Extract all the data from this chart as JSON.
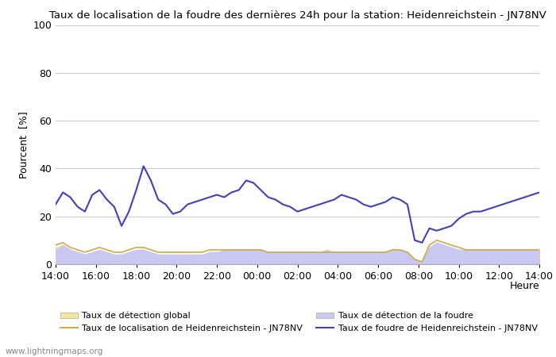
{
  "title": "Taux de localisation de la foudre des dernières 24h pour la station: Heidenreichstein - JN78NV",
  "ylabel": "Pourcent  [%]",
  "xlabel": "Heure",
  "xlim_labels": [
    "14:00",
    "16:00",
    "18:00",
    "20:00",
    "22:00",
    "00:00",
    "02:00",
    "04:00",
    "06:00",
    "08:00",
    "10:00",
    "12:00",
    "14:00"
  ],
  "ylim": [
    0,
    100
  ],
  "yticks": [
    0,
    20,
    40,
    60,
    80,
    100
  ],
  "watermark": "www.lightningmaps.org",
  "legend": [
    {
      "label": "Taux de détection global",
      "type": "fill",
      "color": "#f5e89a"
    },
    {
      "label": "Taux de localisation de Heidenreichstein - JN78NV",
      "type": "line",
      "color": "#d4a843"
    },
    {
      "label": "Taux de détection de la foudre",
      "type": "fill",
      "color": "#c8c8f0"
    },
    {
      "label": "Taux de foudre de Heidenreichstein - JN78NV",
      "type": "line",
      "color": "#4040c0"
    }
  ],
  "blue_line": [
    25,
    30,
    28,
    24,
    22,
    29,
    31,
    27,
    24,
    16,
    22,
    31,
    41,
    35,
    27,
    25,
    21,
    22,
    25,
    26,
    27,
    28,
    29,
    28,
    30,
    31,
    35,
    34,
    31,
    28,
    27,
    25,
    24,
    22,
    23,
    24,
    25,
    26,
    27,
    29,
    28,
    27,
    25,
    24,
    25,
    26,
    28,
    27,
    25,
    10,
    9,
    15,
    14,
    15,
    16,
    19,
    21,
    22,
    22,
    23,
    24,
    25,
    26,
    27,
    28,
    29,
    30
  ],
  "orange_line": [
    8,
    9,
    7,
    6,
    5,
    6,
    7,
    6,
    5,
    5,
    6,
    7,
    7,
    6,
    5,
    5,
    5,
    5,
    5,
    5,
    5,
    6,
    6,
    6,
    6,
    6,
    6,
    6,
    6,
    5,
    5,
    5,
    5,
    5,
    5,
    5,
    5,
    5,
    5,
    5,
    5,
    5,
    5,
    5,
    5,
    5,
    6,
    6,
    5,
    2,
    1,
    8,
    10,
    9,
    8,
    7,
    6,
    6,
    6,
    6,
    6,
    6,
    6,
    6,
    6,
    6,
    6
  ],
  "fill_global": [
    7,
    8,
    6,
    5,
    4,
    5,
    6,
    5,
    4,
    4,
    5,
    6,
    6,
    5,
    4,
    4,
    4,
    4,
    4,
    4,
    4,
    5,
    5,
    5,
    5,
    5,
    5,
    5,
    5,
    4,
    4,
    4,
    4,
    4,
    4,
    4,
    4,
    4,
    4,
    4,
    4,
    4,
    4,
    4,
    4,
    4,
    5,
    5,
    4,
    1,
    1,
    6,
    8,
    7,
    6,
    5,
    5,
    5,
    5,
    5,
    5,
    5,
    5,
    5,
    5,
    5,
    5
  ],
  "fill_foudre": [
    6,
    8,
    6,
    5,
    4,
    5,
    6,
    5,
    4,
    4,
    5,
    6,
    6,
    5,
    4,
    4,
    4,
    4,
    4,
    4,
    4,
    5,
    5,
    6,
    6,
    6,
    6,
    6,
    6,
    5,
    5,
    5,
    5,
    5,
    5,
    5,
    5,
    6,
    5,
    5,
    5,
    5,
    5,
    5,
    5,
    5,
    6,
    6,
    5,
    2,
    1,
    7,
    9,
    8,
    7,
    6,
    6,
    6,
    6,
    6,
    6,
    6,
    6,
    6,
    6,
    6,
    6
  ],
  "n_points": 67,
  "background_color": "#ffffff",
  "grid_color": "#cccccc"
}
